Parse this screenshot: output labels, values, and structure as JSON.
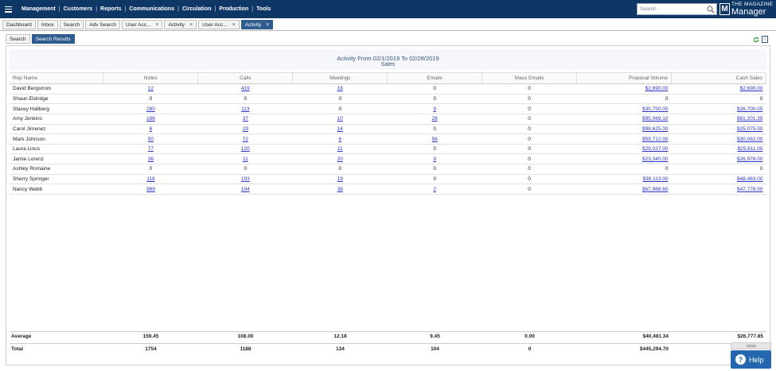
{
  "nav": {
    "items": [
      "Management",
      "Customers",
      "Reports",
      "Communications",
      "Circulation",
      "Production",
      "Tools"
    ],
    "search_placeholder": "Search",
    "logo_top": "THE MAGAZINE",
    "logo_bottom": "Manager",
    "logo_letter": "M"
  },
  "tabs": [
    {
      "label": "Dashboard",
      "closable": false
    },
    {
      "label": "Inbox",
      "closable": false
    },
    {
      "label": "Search",
      "closable": false
    },
    {
      "label": "Adv Search",
      "closable": false
    },
    {
      "label": "User Acc...",
      "closable": true
    },
    {
      "label": "Activity",
      "closable": true
    },
    {
      "label": "User Acc...",
      "closable": true
    },
    {
      "label": "Activity",
      "closable": true,
      "active": true
    }
  ],
  "subtabs": [
    {
      "label": "Search"
    },
    {
      "label": "Search Results",
      "active": true
    }
  ],
  "report": {
    "title": "Activity From 02/1/2019 To 02/28/2019",
    "subtitle": "Sales",
    "columns": [
      "Rep Name",
      "Notes",
      "Calls",
      "Meetings",
      "Emails",
      "Mass Emails",
      "Proposal Volume",
      "Cash Sales"
    ],
    "rows": [
      [
        "David Bergstrom",
        "12",
        "419",
        "16",
        "0",
        "0",
        "$2,690.00",
        "$2,690.00"
      ],
      [
        "Shaun Eldridge",
        "0",
        "0",
        "0",
        "0",
        "0",
        "0",
        "0"
      ],
      [
        "Stacey Hallberg",
        "280",
        "113",
        "0",
        "9",
        "0",
        "$30,750.00",
        "$26,700.00"
      ],
      [
        "Amy Jenkins",
        "186",
        "37",
        "10",
        "28",
        "0",
        "$95,069.10",
        "$61,201.35"
      ],
      [
        "Carol Jimenez",
        "6",
        "29",
        "14",
        "0",
        "0",
        "$98,625.00",
        "$25,075.00"
      ],
      [
        "Mark Johnson",
        "50",
        "72",
        "6",
        "56",
        "0",
        "$59,712.00",
        "$30,062.00"
      ],
      [
        "Laura Linus",
        "77",
        "120",
        "11",
        "0",
        "0",
        "$29,027.00",
        "$25,611.00"
      ],
      [
        "Jamie Lorenz",
        "36",
        "11",
        "20",
        "9",
        "0",
        "$23,340.00",
        "$26,976.00"
      ],
      [
        "Ashley Romaine",
        "0",
        "0",
        "0",
        "0",
        "0",
        "0",
        "0"
      ],
      [
        "Sherry Springer",
        "118",
        "193",
        "19",
        "0",
        "0",
        "$38,113.00",
        "$48,463.00"
      ],
      [
        "Nancy Webb",
        "989",
        "194",
        "38",
        "2",
        "0",
        "$67,968.60",
        "$47,778.00"
      ]
    ],
    "average": [
      "Average",
      "159.45",
      "108.00",
      "12.18",
      "9.45",
      "0.00",
      "$40,481.34",
      "$26,777.85"
    ],
    "total": [
      "Total",
      "1754",
      "1188",
      "134",
      "104",
      "0",
      "$445,294.70",
      ""
    ]
  },
  "help": {
    "label": "Help",
    "glyph": "?"
  },
  "colors": {
    "nav_bg": "#0e3766",
    "active_tab": "#2e5c8e",
    "link": "#2a34c8",
    "help_bg": "#2467b0"
  }
}
